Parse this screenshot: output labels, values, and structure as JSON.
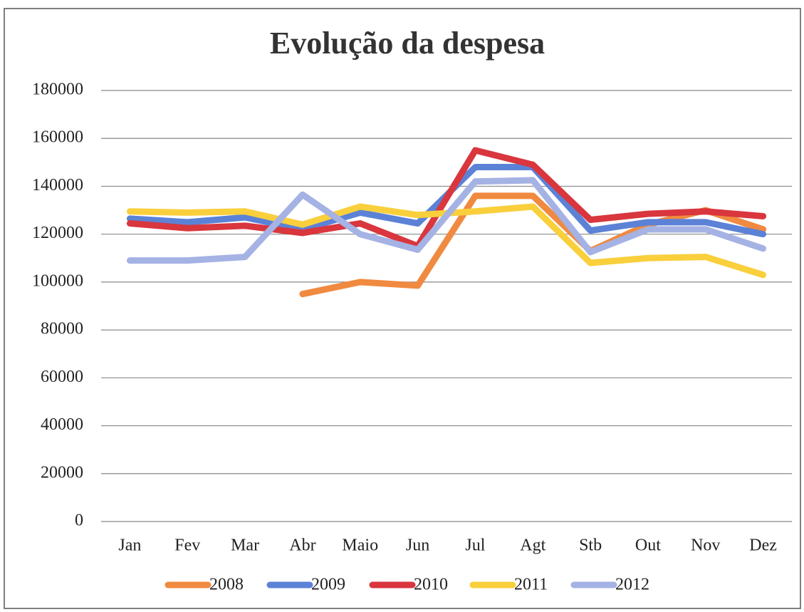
{
  "chart_data": {
    "type": "line",
    "title": "Evolução da despesa",
    "categories": [
      "Jan",
      "Fev",
      "Mar",
      "Abr",
      "Maio",
      "Jun",
      "Jul",
      "Agt",
      "Stb",
      "Out",
      "Nov",
      "Dez"
    ],
    "series": [
      {
        "name": "2008",
        "color": "#f08a40",
        "values": [
          null,
          null,
          null,
          95000,
          100000,
          98500,
          136000,
          136000,
          113000,
          124000,
          130000,
          122000
        ]
      },
      {
        "name": "2009",
        "color": "#5b82d6",
        "values": [
          126500,
          125000,
          127000,
          122000,
          129000,
          124500,
          148000,
          148000,
          121500,
          125000,
          125000,
          120000
        ]
      },
      {
        "name": "2010",
        "color": "#d9363e",
        "values": [
          124500,
          122500,
          123500,
          120500,
          124500,
          115000,
          155000,
          149000,
          126000,
          128500,
          129500,
          127500
        ]
      },
      {
        "name": "2011",
        "color": "#f9cf3c",
        "values": [
          129500,
          129000,
          129500,
          124000,
          131500,
          128000,
          129500,
          131500,
          108000,
          110000,
          110500,
          103000
        ]
      },
      {
        "name": "2012",
        "color": "#a5b2e4",
        "values": [
          109000,
          109000,
          110500,
          136500,
          120000,
          113500,
          142000,
          142500,
          112500,
          122000,
          122000,
          114000
        ]
      }
    ],
    "ylim": [
      0,
      180000
    ],
    "yticks": [
      0,
      20000,
      40000,
      60000,
      80000,
      100000,
      120000,
      140000,
      160000,
      180000
    ],
    "grid": true,
    "legend": "bottom"
  }
}
